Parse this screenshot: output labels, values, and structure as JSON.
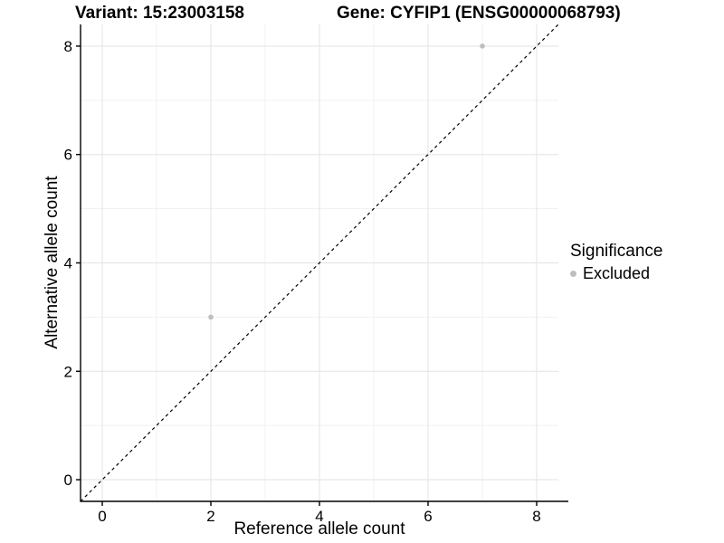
{
  "figure": {
    "titles": {
      "variant": "Variant: 15:23003158",
      "gene": "Gene: CYFIP1 (ENSG00000068793)"
    },
    "colors": {
      "background": "#ffffff",
      "grid_major": "#e3e3e3",
      "grid_minor": "#f1f1f1",
      "axis_line": "#000000",
      "tick_text": "#000000",
      "point": "#bebebe",
      "identity_line": "#000000"
    }
  },
  "chart_data": {
    "type": "scatter",
    "title": "Variant: 15:23003158   Gene: CYFIP1 (ENSG00000068793)",
    "xlabel": "Reference allele count",
    "ylabel": "Alternative allele count",
    "xlim": [
      -0.4,
      8.4
    ],
    "ylim": [
      -0.4,
      8.4
    ],
    "x_breaks": [
      0,
      2,
      4,
      6,
      8
    ],
    "y_breaks": [
      0,
      2,
      4,
      6,
      8
    ],
    "x_minor_breaks": [
      1,
      3,
      5,
      7
    ],
    "y_minor_breaks": [
      1,
      3,
      5,
      7
    ],
    "grid": true,
    "series": [
      {
        "name": "Excluded",
        "color": "#bebebe",
        "points": [
          {
            "x": 2,
            "y": 3
          },
          {
            "x": 7,
            "y": 8
          }
        ]
      }
    ],
    "reference_line": {
      "type": "identity",
      "slope": 1,
      "intercept": 0,
      "style": "dashed",
      "color": "#000000"
    },
    "legend": {
      "position": "right",
      "title": "Significance",
      "items": [
        {
          "label": "Excluded",
          "color": "#bebebe"
        }
      ]
    }
  }
}
